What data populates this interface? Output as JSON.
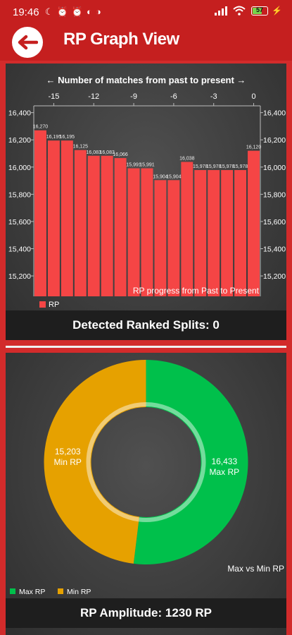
{
  "status_bar": {
    "time": "19:46",
    "left_icons": [
      "moon-icon",
      "alarm-icon",
      "alarm-off-icon",
      "app-icon",
      "app-icon-2"
    ],
    "battery": "57"
  },
  "appbar": {
    "title": "RP Graph View",
    "back_icon": "arrow-left-icon"
  },
  "bar_panel": {
    "footer": "Detected Ranked Splits: 0"
  },
  "donut_panel": {
    "footer": "RP Amplitude: 1230 RP"
  },
  "chart_data": [
    {
      "type": "bar",
      "title": "← Number of matches from past to present →",
      "description": "RP progress from Past to Present",
      "x": [
        -16,
        -15,
        -14,
        -13,
        -12,
        -11,
        -10,
        -9,
        -8,
        -7,
        -6,
        -5,
        -4,
        -3,
        -2,
        -1,
        0
      ],
      "x_ticks": [
        "-15",
        "-12",
        "-9",
        "-6",
        "-3",
        "0"
      ],
      "x_tick_values": [
        -15,
        -12,
        -9,
        -6,
        -3,
        0
      ],
      "series": [
        {
          "name": "RP",
          "color": "#f54545",
          "values": [
            16270,
            16195,
            16195,
            16125,
            16083,
            16083,
            16066,
            15991,
            15991,
            15904,
            15904,
            16038,
            15978,
            15978,
            15978,
            15978,
            16120
          ],
          "labels": [
            "16,270",
            "16,195",
            "16,195",
            "16,125",
            "16,083",
            "16,083",
            "16,066",
            "15,991",
            "15,991",
            "15,904",
            "15,904",
            "16,038",
            "15,978",
            "15,978",
            "15,978",
            "15,978",
            "16,120"
          ]
        }
      ],
      "y_ticks": [
        "15,200",
        "15,400",
        "15,600",
        "15,800",
        "16,000",
        "16,200",
        "16,400"
      ],
      "y_tick_values": [
        15200,
        15400,
        15600,
        15800,
        16000,
        16200,
        16400
      ],
      "ylim": [
        15050,
        16450
      ],
      "legend": "bottom-left",
      "grid": false
    },
    {
      "type": "pie",
      "description": "Max vs Min RP",
      "slices": [
        {
          "name": "Max RP",
          "value": 16433,
          "label": "16,433",
          "sub": "Max RP",
          "color": "#00c04b"
        },
        {
          "name": "Min RP",
          "value": 15203,
          "label": "15,203",
          "sub": "Min RP",
          "color": "#e6a100"
        }
      ],
      "legend": "bottom-left"
    }
  ]
}
